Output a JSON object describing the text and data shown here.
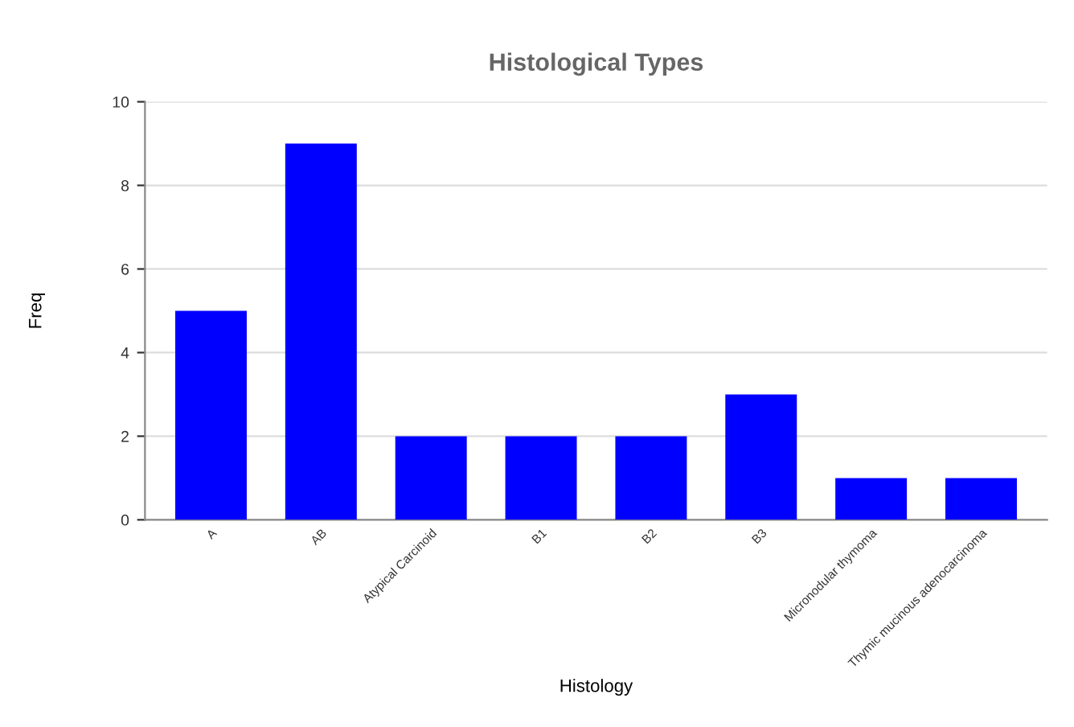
{
  "chart_data": {
    "type": "bar",
    "title": "Histological Types",
    "xlabel": "Histology",
    "ylabel": "Freq",
    "categories": [
      "A",
      "AB",
      "Atypical Carcinoid",
      "B1",
      "B2",
      "B3",
      "Micronodular thymoma",
      "Thymic mucinous adenocarcinoma"
    ],
    "values": [
      5,
      9,
      2,
      2,
      2,
      3,
      1,
      1
    ],
    "color": "#0000ff",
    "ylim": [
      0,
      10
    ],
    "yticks": [
      0,
      2,
      4,
      6,
      8,
      10
    ],
    "grid": "y"
  }
}
